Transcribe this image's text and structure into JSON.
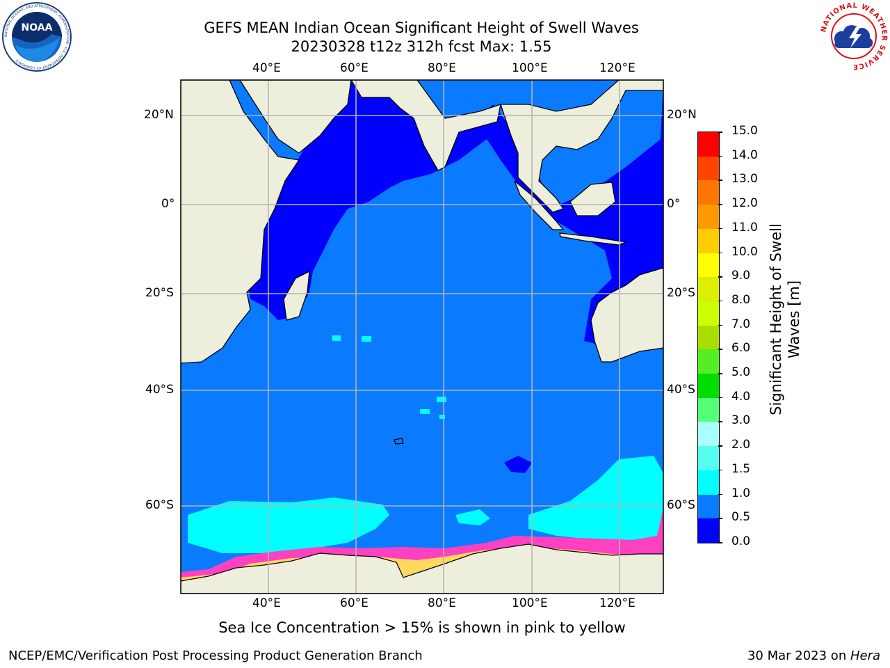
{
  "title": {
    "line1": "GEFS MEAN Indian Ocean Significant Height of Swell Waves",
    "line2": "20230328 t12z 312h fcst   Max: 1.55"
  },
  "caption": "Sea Ice Concentration > 15% is shown in pink to yellow",
  "footer": {
    "left": "NCEP/EMC/Verification Post Processing Product Generation Branch",
    "right_date": "30 Mar 2023 on ",
    "right_machine": "Hera"
  },
  "logos": {
    "noaa_text": "NOAA",
    "noaa_ring": "NATIONAL OCEANIC AND ATMOSPHERIC ADMINISTRATION · U.S. DEPARTMENT OF COMMERCE",
    "nws_ring": "NATIONAL WEATHER SERVICE"
  },
  "map": {
    "lon_range": [
      20,
      130
    ],
    "lat_range": [
      -75,
      27
    ],
    "lon_ticks": [
      {
        "value": 40,
        "label": "40°E"
      },
      {
        "value": 60,
        "label": "60°E"
      },
      {
        "value": 80,
        "label": "80°E"
      },
      {
        "value": 100,
        "label": "100°E"
      },
      {
        "value": 120,
        "label": "120°E"
      }
    ],
    "lat_ticks": [
      {
        "value": 20,
        "label": "20°N"
      },
      {
        "value": 0,
        "label": "0°"
      },
      {
        "value": -20,
        "label": "20°S"
      },
      {
        "value": -40,
        "label": "40°S"
      },
      {
        "value": -60,
        "label": "60°S"
      }
    ],
    "gridlines": true,
    "colors": {
      "land": "#eeeedc",
      "band_0_0_5": "#0000ff",
      "band_0_5_1_0": "#0a7bff",
      "band_1_0_1_5": "#00ffff",
      "ice_pink": "#ff40c0",
      "ice_yellow": "#ffd860",
      "grid": "#b4b4b4"
    }
  },
  "colorbar": {
    "label": "Significant Height of Swell Waves [m]",
    "label_line1": "Significant Height of Swell",
    "label_line2": "Waves [m]",
    "ticks": [
      "0.0",
      "0.5",
      "1.0",
      "1.5",
      "2.0",
      "3.0",
      "4.0",
      "5.0",
      "6.0",
      "7.0",
      "8.0",
      "9.0",
      "10.0",
      "11.0",
      "12.0",
      "13.0",
      "14.0",
      "15.0"
    ],
    "colors": [
      "#0000ff",
      "#0a7bff",
      "#00ffff",
      "#55ffee",
      "#aaffff",
      "#55ff77",
      "#00dd00",
      "#55ee22",
      "#aadd00",
      "#ccff00",
      "#ddee00",
      "#ffff00",
      "#ffcc00",
      "#ff9900",
      "#ff7700",
      "#ff4400",
      "#ff0000"
    ]
  }
}
